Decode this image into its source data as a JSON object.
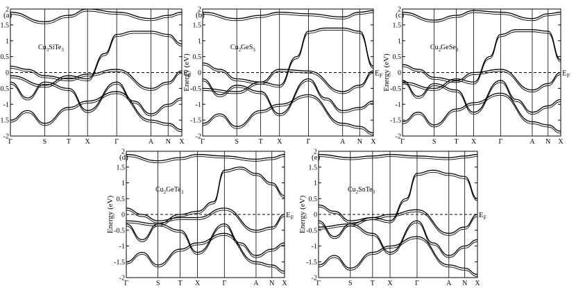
{
  "chart_data": [
    {
      "type": "line",
      "panel_label": "(a)",
      "title": "Cu3SiTe3",
      "title_parts": [
        "Cu",
        "3",
        "SiTe",
        "3",
        ""
      ],
      "ylabel": "Energy (eV)",
      "fermi_label": "E",
      "fermi_sub": "F",
      "ylim": [
        -2,
        2
      ],
      "yticks": [
        "2",
        "1.5",
        "1",
        "0.5",
        "0",
        "-0.5",
        "-1",
        "-1.5",
        "-2"
      ],
      "ytick_values": [
        2,
        1.5,
        1,
        0.5,
        0,
        -0.5,
        -1,
        -1.5,
        -2
      ],
      "kpoints": [
        "Γ",
        "S",
        "T",
        "X",
        "Γ",
        "A",
        "N",
        "X"
      ],
      "kpoint_positions": [
        0,
        0.2,
        0.34,
        0.45,
        0.62,
        0.82,
        0.92,
        1
      ],
      "fermi_level": 0,
      "grid": false,
      "series": [
        {
          "x": [
            0,
            0.1,
            0.2,
            0.34,
            0.45,
            0.62,
            0.82,
            0.92,
            1
          ],
          "y": [
            0.2,
            0.1,
            -0.1,
            -0.2,
            -0.05,
            0.1,
            -0.5,
            -0.3,
            0.05
          ]
        },
        {
          "x": [
            0,
            0.1,
            0.2,
            0.34,
            0.45,
            0.62,
            0.72,
            0.82,
            0.92,
            1
          ],
          "y": [
            -0.3,
            -0.8,
            -0.3,
            -0.5,
            -1.2,
            -0.3,
            -0.9,
            -1.3,
            -1.0,
            -0.8
          ]
        },
        {
          "x": [
            0,
            0.1,
            0.2,
            0.34,
            0.45,
            0.62,
            0.82,
            0.92,
            1
          ],
          "y": [
            -1.5,
            -1.2,
            -1.6,
            -1.1,
            -0.9,
            -0.6,
            -1.5,
            -1.6,
            -1.8
          ]
        },
        {
          "x": [
            0,
            0.2,
            0.34,
            0.45,
            0.55,
            0.62,
            0.72,
            0.82,
            0.92,
            1
          ],
          "y": [
            -0.1,
            -0.4,
            -0.1,
            -0.2,
            0.6,
            1.2,
            1.3,
            1.3,
            1.2,
            0.9
          ]
        },
        {
          "x": [
            0,
            0.2,
            0.34,
            0.45,
            0.62,
            0.82,
            0.92,
            1
          ],
          "y": [
            1.9,
            1.6,
            1.8,
            2.0,
            1.9,
            1.7,
            1.8,
            1.9
          ]
        }
      ]
    },
    {
      "type": "line",
      "panel_label": "(b)",
      "title": "Cu2GeS3",
      "title_parts": [
        "Cu",
        "2",
        "GeS",
        "3",
        ""
      ],
      "ylabel": "Energy (eV)",
      "fermi_label": "E",
      "fermi_sub": "F",
      "ylim": [
        -2,
        2
      ],
      "yticks": [
        "2",
        "1.5",
        "1",
        "0.5",
        "0",
        "-0.5",
        "-1",
        "-1.5",
        "-2"
      ],
      "ytick_values": [
        2,
        1.5,
        1,
        0.5,
        0,
        -0.5,
        -1,
        -1.5,
        -2
      ],
      "kpoints": [
        "Γ",
        "S",
        "T",
        "X",
        "Γ",
        "A",
        "N",
        "X"
      ],
      "kpoint_positions": [
        0,
        0.2,
        0.34,
        0.45,
        0.62,
        0.82,
        0.92,
        1
      ],
      "fermi_level": 0,
      "grid": false,
      "series": [
        {
          "x": [
            0,
            0.1,
            0.2,
            0.34,
            0.45,
            0.62,
            0.82,
            0.92,
            1
          ],
          "y": [
            0.3,
            0.1,
            -0.2,
            -0.3,
            0.1,
            0.05,
            -0.6,
            -0.4,
            0.05
          ]
        },
        {
          "x": [
            0,
            0.1,
            0.2,
            0.34,
            0.45,
            0.62,
            0.72,
            0.82,
            0.92,
            1
          ],
          "y": [
            -0.2,
            -0.7,
            -0.4,
            -0.6,
            -1.3,
            -0.2,
            -0.8,
            -1.2,
            -1.1,
            -0.9
          ]
        },
        {
          "x": [
            0,
            0.1,
            0.2,
            0.34,
            0.45,
            0.62,
            0.82,
            0.92,
            1
          ],
          "y": [
            -1.6,
            -1.3,
            -1.7,
            -1.2,
            -1.0,
            -0.7,
            -1.6,
            -1.7,
            -1.9
          ]
        },
        {
          "x": [
            0,
            0.2,
            0.34,
            0.45,
            0.55,
            0.62,
            0.72,
            0.82,
            0.92,
            1
          ],
          "y": [
            -0.5,
            -0.6,
            -0.3,
            -0.4,
            0.5,
            1.3,
            1.4,
            1.4,
            1.3,
            0.2
          ]
        },
        {
          "x": [
            0,
            0.2,
            0.34,
            0.45,
            0.62,
            0.82,
            0.92,
            1
          ],
          "y": [
            1.9,
            1.7,
            1.8,
            1.9,
            1.85,
            1.75,
            1.9,
            1.95
          ]
        }
      ]
    },
    {
      "type": "line",
      "panel_label": "(c)",
      "title": "Cu2GeSe3",
      "title_parts": [
        "Cu",
        "2",
        "GeSe",
        "3",
        ""
      ],
      "ylabel": "Energy (eV)",
      "fermi_label": "E",
      "fermi_sub": "F",
      "ylim": [
        -2,
        2
      ],
      "yticks": [
        "2",
        "1.5",
        "1",
        "0.5",
        "0",
        "-0.5",
        "-1",
        "-1.5",
        "-2"
      ],
      "ytick_values": [
        2,
        1.5,
        1,
        0.5,
        0,
        -0.5,
        -1,
        -1.5,
        -2
      ],
      "kpoints": [
        "Γ",
        "S",
        "T",
        "X",
        "Γ",
        "A",
        "N",
        "X"
      ],
      "kpoint_positions": [
        0,
        0.2,
        0.34,
        0.45,
        0.62,
        0.82,
        0.92,
        1
      ],
      "fermi_level": 0,
      "grid": false,
      "series": [
        {
          "x": [
            0,
            0.1,
            0.2,
            0.34,
            0.45,
            0.62,
            0.82,
            0.92,
            1
          ],
          "y": [
            0.25,
            0.1,
            -0.15,
            -0.25,
            0.0,
            0.1,
            -0.55,
            -0.35,
            0.0
          ]
        },
        {
          "x": [
            0,
            0.1,
            0.2,
            0.34,
            0.45,
            0.62,
            0.72,
            0.82,
            0.92,
            1
          ],
          "y": [
            -0.25,
            -0.75,
            -0.35,
            -0.55,
            -1.25,
            -0.25,
            -0.85,
            -1.25,
            -1.05,
            -0.85
          ]
        },
        {
          "x": [
            0,
            0.1,
            0.2,
            0.34,
            0.45,
            0.62,
            0.82,
            0.92,
            1
          ],
          "y": [
            -1.55,
            -1.25,
            -1.65,
            -1.15,
            -0.95,
            -0.65,
            -1.55,
            -1.65,
            -1.85
          ]
        },
        {
          "x": [
            0,
            0.2,
            0.34,
            0.45,
            0.55,
            0.62,
            0.72,
            0.82,
            0.92,
            1
          ],
          "y": [
            -0.3,
            -0.5,
            -0.2,
            -0.3,
            0.5,
            1.2,
            1.35,
            1.35,
            1.3,
            0.4
          ]
        },
        {
          "x": [
            0,
            0.2,
            0.34,
            0.45,
            0.62,
            0.82,
            0.92,
            1
          ],
          "y": [
            1.9,
            1.65,
            1.8,
            1.95,
            1.9,
            1.7,
            1.85,
            1.9
          ]
        }
      ]
    },
    {
      "type": "line",
      "panel_label": "(d)",
      "title": "Cu2GeTe3",
      "title_parts": [
        "Cu",
        "2",
        "GeTe",
        "3",
        ""
      ],
      "ylabel": "Energy (eV)",
      "fermi_label": "E",
      "fermi_sub": "F",
      "ylim": [
        -2,
        2
      ],
      "yticks": [
        "2",
        "1.5",
        "1",
        "0.5",
        "0",
        "-0.5",
        "-1",
        "-1.5",
        "-2"
      ],
      "ytick_values": [
        2,
        1.5,
        1,
        0.5,
        0,
        -0.5,
        -1,
        -1.5,
        -2
      ],
      "kpoints": [
        "Γ",
        "S",
        "T",
        "X",
        "Γ",
        "A",
        "N",
        "X"
      ],
      "kpoint_positions": [
        0,
        0.2,
        0.34,
        0.45,
        0.62,
        0.82,
        0.92,
        1
      ],
      "fermi_level": 0,
      "grid": false,
      "series": [
        {
          "x": [
            0,
            0.1,
            0.2,
            0.34,
            0.45,
            0.62,
            0.82,
            0.92,
            1
          ],
          "y": [
            0.2,
            0.0,
            -0.2,
            -0.1,
            -0.1,
            0.2,
            -0.5,
            -0.4,
            0.0
          ]
        },
        {
          "x": [
            0,
            0.1,
            0.2,
            0.34,
            0.45,
            0.62,
            0.72,
            0.82,
            0.92,
            1
          ],
          "y": [
            -0.3,
            -0.8,
            -0.3,
            -0.5,
            -1.2,
            -0.3,
            -0.9,
            -1.3,
            -1.1,
            -0.9
          ]
        },
        {
          "x": [
            0,
            0.1,
            0.2,
            0.34,
            0.45,
            0.62,
            0.82,
            0.92,
            1
          ],
          "y": [
            -1.5,
            -1.2,
            -1.6,
            -1.1,
            -0.9,
            -0.6,
            -1.5,
            -1.6,
            -1.8
          ]
        },
        {
          "x": [
            0,
            0.2,
            0.34,
            0.45,
            0.55,
            0.62,
            0.72,
            0.82,
            0.92,
            1
          ],
          "y": [
            -0.2,
            -0.3,
            0.0,
            0.1,
            0.4,
            1.4,
            1.5,
            1.3,
            1.0,
            0.6
          ]
        },
        {
          "x": [
            0,
            0.2,
            0.34,
            0.45,
            0.62,
            0.82,
            0.92,
            1
          ],
          "y": [
            1.9,
            1.7,
            1.8,
            1.9,
            1.85,
            1.75,
            1.8,
            1.9
          ]
        }
      ]
    },
    {
      "type": "line",
      "panel_label": "(e)",
      "title": "Cu2SnTe3",
      "title_parts": [
        "Cu",
        "2",
        "SnTe",
        "3",
        ""
      ],
      "ylabel": "Energy (eV)",
      "fermi_label": "E",
      "fermi_sub": "F",
      "ylim": [
        -2,
        2
      ],
      "yticks": [
        "2",
        "1.5",
        "1",
        "0.5",
        "0",
        "-0.5",
        "-1",
        "-1.5",
        "-2"
      ],
      "ytick_values": [
        2,
        1.5,
        1,
        0.5,
        0,
        -0.5,
        -1,
        -1.5,
        -2
      ],
      "kpoints": [
        "Γ",
        "S",
        "T",
        "X",
        "Γ",
        "A",
        "N",
        "X"
      ],
      "kpoint_positions": [
        0,
        0.2,
        0.34,
        0.45,
        0.62,
        0.82,
        0.92,
        1
      ],
      "fermi_level": 0,
      "grid": false,
      "series": [
        {
          "x": [
            0,
            0.1,
            0.2,
            0.34,
            0.45,
            0.62,
            0.82,
            0.92,
            1
          ],
          "y": [
            0.3,
            0.1,
            -0.2,
            -0.1,
            0.0,
            0.15,
            -0.6,
            -0.4,
            0.0
          ]
        },
        {
          "x": [
            0,
            0.1,
            0.2,
            0.34,
            0.45,
            0.62,
            0.72,
            0.82,
            0.92,
            1
          ],
          "y": [
            -0.2,
            -0.7,
            -0.3,
            -0.6,
            -1.2,
            -0.2,
            -0.9,
            -1.3,
            -1.0,
            -0.8
          ]
        },
        {
          "x": [
            0,
            0.1,
            0.2,
            0.34,
            0.45,
            0.62,
            0.82,
            0.92,
            1
          ],
          "y": [
            -1.6,
            -1.3,
            -1.7,
            -1.2,
            -1.0,
            -0.7,
            -1.6,
            -1.7,
            -1.9
          ]
        },
        {
          "x": [
            0,
            0.2,
            0.34,
            0.45,
            0.55,
            0.62,
            0.72,
            0.82,
            0.92,
            1
          ],
          "y": [
            -0.4,
            -0.3,
            -0.1,
            -0.2,
            0.5,
            1.3,
            1.4,
            1.3,
            1.2,
            0.5
          ]
        },
        {
          "x": [
            0,
            0.2,
            0.34,
            0.45,
            0.62,
            0.82,
            0.92,
            1
          ],
          "y": [
            1.9,
            1.8,
            1.85,
            1.9,
            1.85,
            1.8,
            1.85,
            1.9
          ]
        }
      ]
    }
  ]
}
